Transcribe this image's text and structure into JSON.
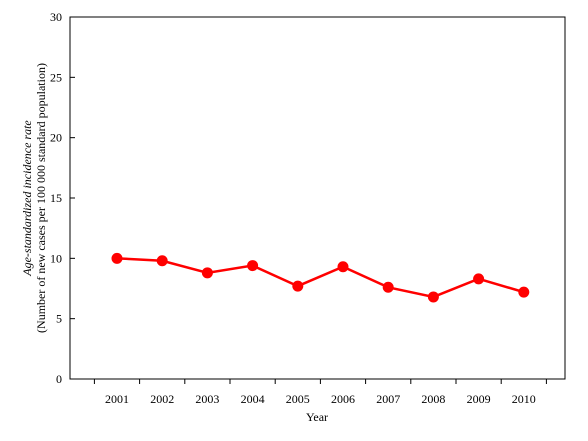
{
  "chart_data": {
    "type": "line",
    "title": "",
    "xlabel": "Year",
    "ylabel_line1": "Age-standardized incidence rate",
    "ylabel_line2": "(Number of new cases per 100 000 standard population)",
    "ylim": [
      0,
      30
    ],
    "yticks": [
      "0",
      "5",
      "10",
      "15",
      "20",
      "25",
      "30"
    ],
    "categories": [
      "2001",
      "2002",
      "2003",
      "2004",
      "2005",
      "2006",
      "2007",
      "2008",
      "2009",
      "2010"
    ],
    "series": [
      {
        "values": [
          10.0,
          9.8,
          8.8,
          9.4,
          7.7,
          9.3,
          7.6,
          6.8,
          8.3,
          7.2
        ]
      }
    ],
    "grid": false,
    "legend": "none",
    "colors": {
      "series": "#ff0000",
      "axis": "#000000"
    }
  }
}
